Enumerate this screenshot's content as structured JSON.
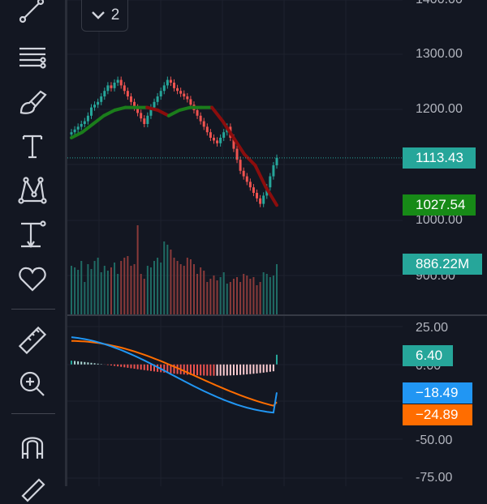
{
  "toolbar": {
    "tools": [
      {
        "name": "trend-line-icon"
      },
      {
        "name": "fib-retracement-icon"
      },
      {
        "name": "brush-icon"
      },
      {
        "name": "text-icon"
      },
      {
        "name": "pattern-icon"
      },
      {
        "name": "measure-icon"
      },
      {
        "name": "favorites-heart-icon"
      },
      {
        "name": "ruler-icon"
      },
      {
        "name": "zoom-in-icon"
      },
      {
        "name": "magnet-icon"
      },
      {
        "name": "pencil-icon"
      }
    ]
  },
  "legend": {
    "collapsed_count": "2"
  },
  "price_axis": {
    "ticks": [
      "1400.00",
      "1300.00",
      "1200.00",
      "1100.00",
      "1000.00",
      "900.00"
    ]
  },
  "macd_axis": {
    "ticks": [
      "25.00",
      "0.00",
      "-50.00",
      "-75.00"
    ]
  },
  "labels": {
    "last_price": "1113.43",
    "ma_value": "1027.54",
    "volume": "886.22M",
    "histogram": "6.40",
    "macd": "−18.49",
    "signal": "−24.89"
  },
  "colors": {
    "background": "#131722",
    "up": "#26a69a",
    "down": "#ef5350",
    "ma_line_up": "#1b7d1b",
    "ma_line_down": "#8b0d0d",
    "macd_line": "#2196f3",
    "signal_line": "#ff6d00",
    "last_price_label": "#26a69a",
    "ma_label": "#178a17"
  },
  "chart_data": {
    "type": "candlestick",
    "price_ohlc_approx": [
      1160,
      1165,
      1170,
      1175,
      1180,
      1190,
      1205,
      1210,
      1215,
      1225,
      1235,
      1245,
      1240,
      1250,
      1255,
      1245,
      1235,
      1225,
      1215,
      1205,
      1195,
      1185,
      1175,
      1190,
      1205,
      1215,
      1225,
      1235,
      1245,
      1255,
      1250,
      1240,
      1235,
      1230,
      1225,
      1220,
      1210,
      1200,
      1190,
      1180,
      1170,
      1160,
      1150,
      1145,
      1140,
      1150,
      1160,
      1170,
      1150,
      1130,
      1110,
      1090,
      1080,
      1070,
      1060,
      1050,
      1040,
      1030,
      1045,
      1060,
      1080,
      1100,
      1113.43
    ],
    "ma_line_values_approx": [
      1150,
      1160,
      1175,
      1190,
      1200,
      1205,
      1205,
      1205,
      1200,
      1190,
      1200,
      1205,
      1205,
      1205,
      1180,
      1150,
      1120,
      1100,
      1060,
      1027.54
    ],
    "volume_last": "886.22M",
    "macd_last": -18.49,
    "signal_last": -24.89,
    "histogram_last": 6.4,
    "price_ylim": [
      900,
      1400
    ],
    "macd_ylim": [
      -75,
      25
    ]
  }
}
